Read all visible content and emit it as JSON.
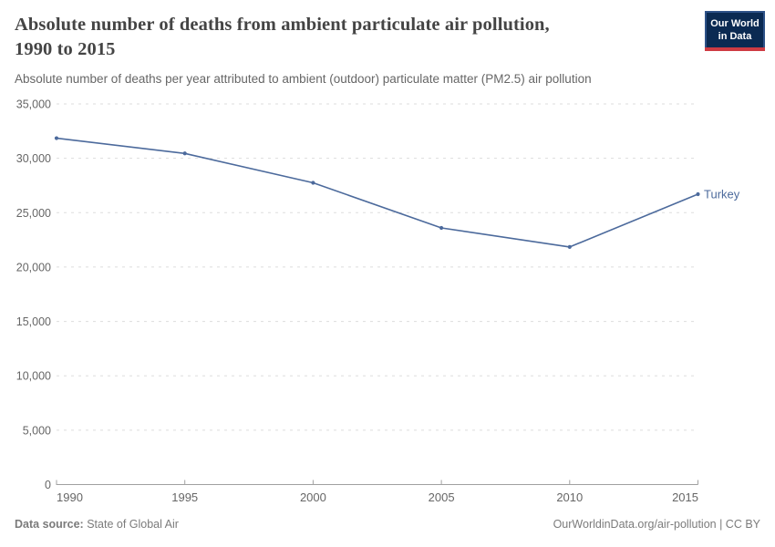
{
  "header": {
    "title_line1": "Absolute number of deaths from ambient particulate air pollution,",
    "title_line2": "1990 to 2015",
    "subtitle": "Absolute number of deaths per year attributed to ambient (outdoor) particulate matter (PM2.5) air pollution",
    "logo": {
      "line1": "Our World",
      "line2": "in Data",
      "bg_color": "#0b2a52",
      "accent_color": "#ce3b43"
    }
  },
  "chart_data": {
    "type": "line",
    "title": "Absolute number of deaths from ambient particulate air pollution, 1990 to 2015",
    "x": [
      1990,
      1995,
      2000,
      2005,
      2010,
      2015
    ],
    "x_tick_labels": [
      "1990",
      "1995",
      "2000",
      "2005",
      "2010",
      "2015"
    ],
    "series": [
      {
        "name": "Turkey",
        "values": [
          31850,
          30450,
          27750,
          23600,
          21850,
          26700
        ],
        "color": "#4C6A9C"
      }
    ],
    "xlim": [
      1990,
      2015
    ],
    "ylim": [
      0,
      35000
    ],
    "y_ticks": [
      0,
      5000,
      10000,
      15000,
      20000,
      25000,
      30000,
      35000
    ],
    "y_tick_labels": [
      "0",
      "5,000",
      "10,000",
      "15,000",
      "20,000",
      "25,000",
      "30,000",
      "35,000"
    ],
    "grid": "horizontal dashed",
    "legend": "end-of-line label",
    "colors": {
      "gridline": "#dddddd",
      "axis": "#a1a1a1",
      "tick_label": "#666666"
    }
  },
  "footer": {
    "source_label": "Data source:",
    "source_value": " State of Global Air",
    "credit": "OurWorldinData.org/air-pollution | CC BY"
  }
}
